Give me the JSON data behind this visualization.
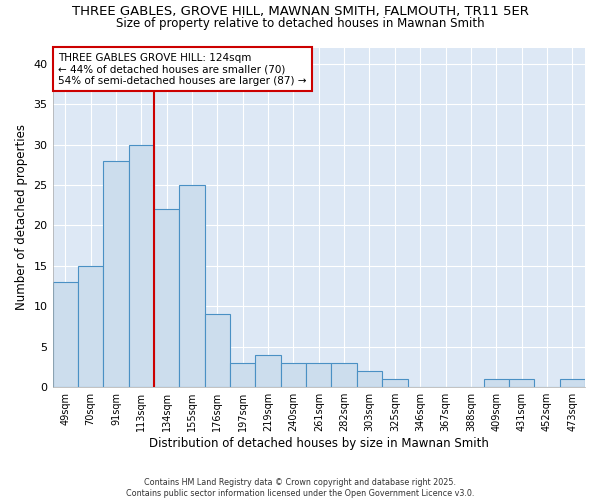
{
  "title_line1": "THREE GABLES, GROVE HILL, MAWNAN SMITH, FALMOUTH, TR11 5ER",
  "title_line2": "Size of property relative to detached houses in Mawnan Smith",
  "xlabel": "Distribution of detached houses by size in Mawnan Smith",
  "ylabel": "Number of detached properties",
  "categories": [
    "49sqm",
    "70sqm",
    "91sqm",
    "113sqm",
    "134sqm",
    "155sqm",
    "176sqm",
    "197sqm",
    "219sqm",
    "240sqm",
    "261sqm",
    "282sqm",
    "303sqm",
    "325sqm",
    "346sqm",
    "367sqm",
    "388sqm",
    "409sqm",
    "431sqm",
    "452sqm",
    "473sqm"
  ],
  "values": [
    13,
    15,
    28,
    30,
    22,
    25,
    9,
    3,
    4,
    3,
    3,
    3,
    2,
    1,
    0,
    0,
    0,
    1,
    1,
    0,
    1
  ],
  "bar_color": "#ccdded",
  "bar_edge_color": "#4a90c4",
  "plot_bg_color": "#dde8f5",
  "fig_bg_color": "#ffffff",
  "grid_color": "#ffffff",
  "red_line_x": 3.5,
  "annotation_text": "THREE GABLES GROVE HILL: 124sqm\n← 44% of detached houses are smaller (70)\n54% of semi-detached houses are larger (87) →",
  "annotation_box_color": "#ffffff",
  "annotation_box_edge": "#cc0000",
  "red_line_color": "#cc0000",
  "footer_line1": "Contains HM Land Registry data © Crown copyright and database right 2025.",
  "footer_line2": "Contains public sector information licensed under the Open Government Licence v3.0.",
  "ylim": [
    0,
    42
  ],
  "yticks": [
    0,
    5,
    10,
    15,
    20,
    25,
    30,
    35,
    40
  ]
}
